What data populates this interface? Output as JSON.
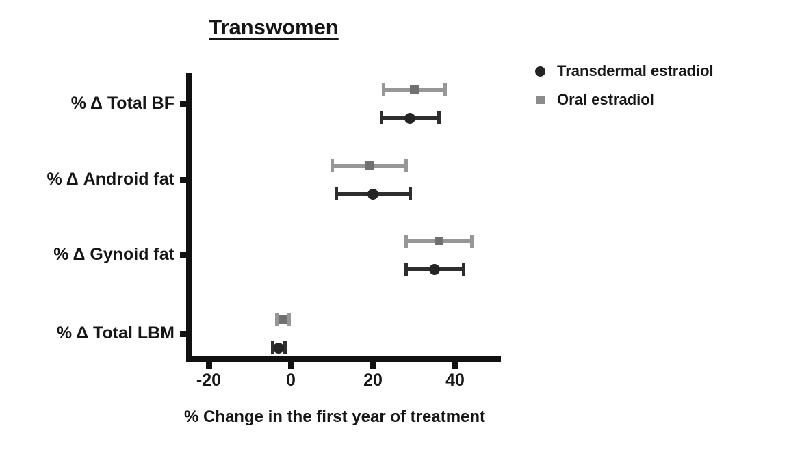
{
  "chart_data": {
    "type": "scatter",
    "subtype": "forest-plot-with-error-bars",
    "title": "Transwomen",
    "xlabel": "% Change in the first year of treatment",
    "ylabel": "",
    "categories": [
      "% Δ Total BF",
      "% Δ Android fat",
      "% Δ Gynoid fat",
      "% Δ Total LBM"
    ],
    "x_ticks": [
      -20,
      0,
      20,
      40
    ],
    "xlim": [
      -25,
      51
    ],
    "grid": false,
    "legend_position": "top-right",
    "series": [
      {
        "name": "Transdermal estradiol",
        "marker": "circle",
        "line_color": "#2e2e2e",
        "marker_color": "#242424",
        "values": [
          29,
          20,
          35,
          -3
        ],
        "ci_low": [
          22,
          11,
          28,
          -4.5
        ],
        "ci_high": [
          36,
          29,
          42,
          -1.5
        ],
        "row_in_pair": "lower"
      },
      {
        "name": "Oral estradiol",
        "marker": "square",
        "line_color": "#979797",
        "marker_color": "#707070",
        "values": [
          30,
          19,
          36,
          -2
        ],
        "ci_low": [
          22.5,
          10,
          28,
          -3.5
        ],
        "ci_high": [
          37.5,
          28,
          44,
          -0.5
        ],
        "row_in_pair": "upper"
      }
    ]
  }
}
